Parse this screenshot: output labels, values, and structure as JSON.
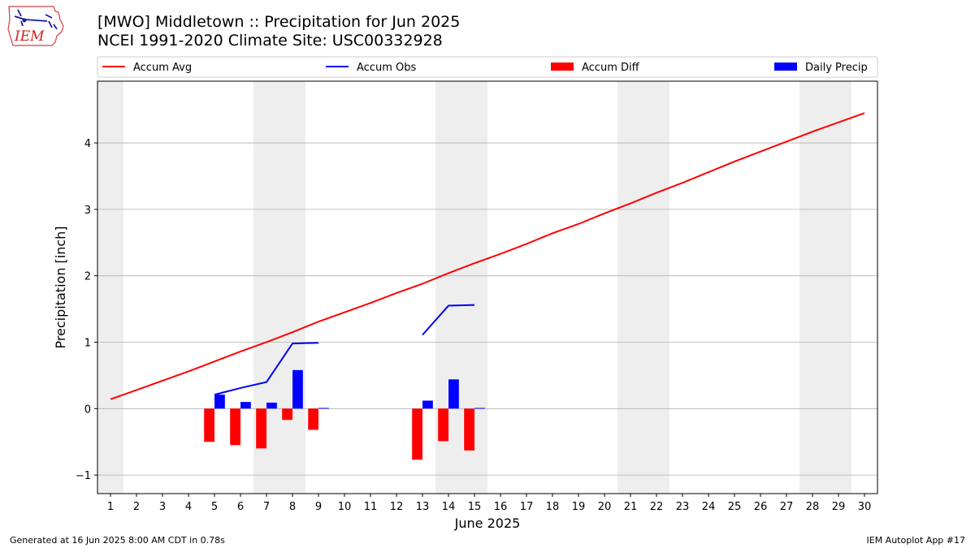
{
  "header": {
    "title_line1": "[MWO] Middletown :: Precipitation for Jun 2025",
    "title_line2": "NCEI 1991-2020 Climate Site: USC00332928",
    "logo_text": "IEM"
  },
  "footer": {
    "left": "Generated at 16 Jun 2025 8:00 AM CDT in 0.78s",
    "right": "IEM Autoplot App #17"
  },
  "colors": {
    "avg": "#ff0000",
    "obs": "#0000ff",
    "diff": "#ff0000",
    "daily": "#0000ff",
    "weekend_band": "#eeeeee",
    "grid": "#b0b0b0"
  },
  "chart_data": {
    "type": "bar",
    "xlabel": "June 2025",
    "ylabel": "Precipitation [inch]",
    "xlim": [
      0.5,
      30.5
    ],
    "ylim": [
      -1.28,
      4.93
    ],
    "yticks": [
      -1,
      0,
      1,
      2,
      3,
      4
    ],
    "xticks": [
      1,
      2,
      3,
      4,
      5,
      6,
      7,
      8,
      9,
      10,
      11,
      12,
      13,
      14,
      15,
      16,
      17,
      18,
      19,
      20,
      21,
      22,
      23,
      24,
      25,
      26,
      27,
      28,
      29,
      30
    ],
    "grid": "horizontal",
    "legend_position": "top",
    "weekend_bands": [
      [
        0.5,
        1.5
      ],
      [
        6.5,
        8.5
      ],
      [
        13.5,
        15.5
      ],
      [
        20.5,
        22.5
      ],
      [
        27.5,
        29.5
      ]
    ],
    "series": [
      {
        "name": "Accum Avg",
        "kind": "line",
        "x": [
          1,
          2,
          3,
          4,
          5,
          6,
          7,
          8,
          9,
          10,
          11,
          12,
          13,
          14,
          15,
          16,
          17,
          18,
          19,
          20,
          21,
          22,
          23,
          24,
          25,
          26,
          27,
          28,
          29,
          30
        ],
        "values": [
          0.14,
          0.28,
          0.42,
          0.56,
          0.71,
          0.86,
          1.0,
          1.15,
          1.31,
          1.45,
          1.59,
          1.74,
          1.88,
          2.04,
          2.19,
          2.33,
          2.48,
          2.64,
          2.78,
          2.94,
          3.09,
          3.25,
          3.4,
          3.56,
          3.72,
          3.87,
          4.02,
          4.17,
          4.31,
          4.45
        ]
      },
      {
        "name": "Accum Obs",
        "kind": "line",
        "segments": [
          {
            "x": [
              5,
              6,
              7,
              8,
              9
            ],
            "values": [
              0.21,
              0.31,
              0.4,
              0.98,
              0.99
            ]
          },
          {
            "x": [
              13,
              14,
              15
            ],
            "values": [
              1.11,
              1.55,
              1.56
            ]
          }
        ]
      },
      {
        "name": "Accum Diff",
        "kind": "bar",
        "x": [
          5,
          6,
          7,
          8,
          9,
          13,
          14,
          15
        ],
        "values": [
          -0.5,
          -0.55,
          -0.6,
          -0.17,
          -0.32,
          -0.77,
          -0.49,
          -0.63
        ]
      },
      {
        "name": "Daily Precip",
        "kind": "bar",
        "x": [
          5,
          6,
          7,
          8,
          9,
          13,
          14,
          15
        ],
        "values": [
          0.21,
          0.1,
          0.09,
          0.58,
          0.01,
          0.12,
          0.44,
          0.01
        ]
      }
    ]
  }
}
